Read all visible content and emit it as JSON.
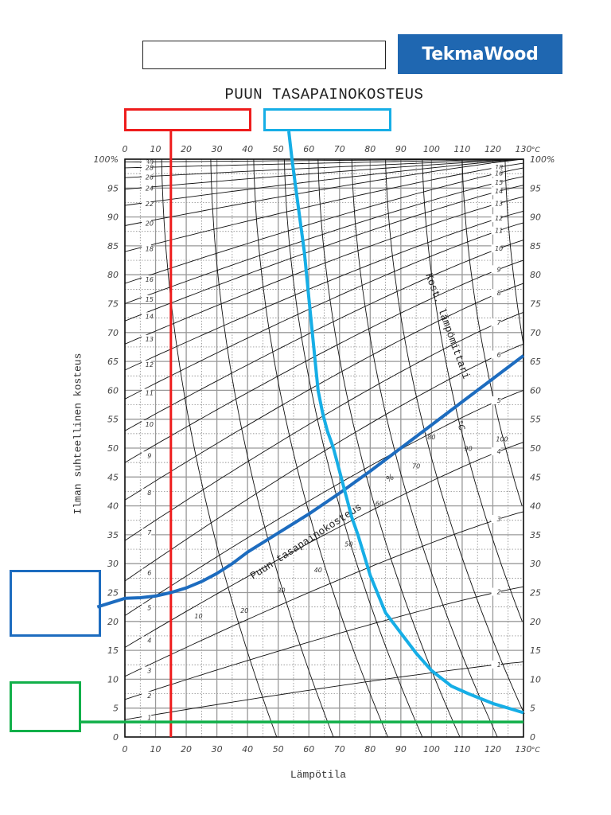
{
  "header": {
    "title_box_text": "",
    "logo_text": "TekmaWood",
    "logo_color": "#1f67b1"
  },
  "chart_title": "PUUN TASAPAINOKOSTEUS",
  "annotation_boxes": {
    "red": {
      "text": "",
      "color": "#ee1c1c"
    },
    "cyan": {
      "text": "",
      "color": "#16aee6"
    },
    "blue": {
      "text": "",
      "color": "#1d6cbf"
    },
    "green": {
      "text": "",
      "color": "#12b04a"
    }
  },
  "chart_data": {
    "type": "line",
    "title": "PUUN TASAPAINOKOSTEUS",
    "xlabel": "Lämpötila",
    "ylabel": "Ilman suhteellinen kosteus",
    "x_unit": "°C",
    "y_unit": "%",
    "xlim": [
      0,
      130
    ],
    "ylim": [
      0,
      100
    ],
    "x_ticks": [
      0,
      10,
      20,
      30,
      40,
      50,
      60,
      70,
      80,
      90,
      100,
      110,
      120,
      130
    ],
    "y_ticks": [
      0,
      5,
      10,
      15,
      20,
      25,
      30,
      35,
      40,
      45,
      50,
      55,
      60,
      65,
      70,
      75,
      80,
      85,
      90,
      95,
      100
    ],
    "grid": true,
    "emc_curve_labels_left": [
      "30",
      "28",
      "26",
      "24",
      "22",
      "20",
      "18",
      "16",
      "15",
      "14",
      "13",
      "12",
      "11",
      "10",
      "9",
      "8",
      "7",
      "6",
      "5",
      "4",
      "3",
      "2",
      "1"
    ],
    "emc_curve_labels_right": [
      "18",
      "16",
      "15",
      "14",
      "13",
      "12",
      "11",
      "10",
      "9",
      "8",
      "7",
      "6",
      "5",
      "4",
      "3",
      "2",
      "1"
    ],
    "wet_bulb_labels": [
      "10",
      "20",
      "30",
      "40",
      "50",
      "60",
      "70",
      "80",
      "90",
      "100"
    ],
    "annotations": [
      "Puun tasapainokosteus %",
      "Kost. lämpömittari °C"
    ],
    "emc_curves": [
      {
        "emc": 30,
        "left_rh": 99.5,
        "right_rh": 100
      },
      {
        "emc": 28,
        "left_rh": 98.5,
        "right_rh": 100
      },
      {
        "emc": 26,
        "left_rh": 96.8,
        "right_rh": 100
      },
      {
        "emc": 24,
        "left_rh": 94.8,
        "right_rh": 100
      },
      {
        "emc": 22,
        "left_rh": 92.0,
        "right_rh": 100
      },
      {
        "emc": 20,
        "left_rh": 88.5,
        "right_rh": 100
      },
      {
        "emc": 18,
        "left_rh": 84.0,
        "right_rh": 99.3
      },
      {
        "emc": 16,
        "left_rh": 78.5,
        "right_rh": 98.5
      },
      {
        "emc": 15,
        "left_rh": 75.0,
        "right_rh": 97.0
      },
      {
        "emc": 14,
        "left_rh": 72.0,
        "right_rh": 95.5
      },
      {
        "emc": 13,
        "left_rh": 68.0,
        "right_rh": 93.5
      },
      {
        "emc": 12,
        "left_rh": 63.5,
        "right_rh": 91.0
      },
      {
        "emc": 11,
        "left_rh": 58.5,
        "right_rh": 89.0
      },
      {
        "emc": 10,
        "left_rh": 53.0,
        "right_rh": 86.0
      },
      {
        "emc": 9,
        "left_rh": 47.5,
        "right_rh": 82.5
      },
      {
        "emc": 8,
        "left_rh": 41.0,
        "right_rh": 78.5
      },
      {
        "emc": 7,
        "left_rh": 34.0,
        "right_rh": 73.5
      },
      {
        "emc": 6,
        "left_rh": 27.0,
        "right_rh": 68.0
      },
      {
        "emc": 5,
        "left_rh": 21.0,
        "right_rh": 60.0
      },
      {
        "emc": 4,
        "left_rh": 15.5,
        "right_rh": 51.0
      },
      {
        "emc": 3,
        "left_rh": 10.5,
        "right_rh": 39.0
      },
      {
        "emc": 2,
        "left_rh": 6.5,
        "right_rh": 26.0
      },
      {
        "emc": 1,
        "left_rh": 3.0,
        "right_rh": 13.0
      }
    ],
    "series": [
      {
        "name": "Red reference line (temperature)",
        "color": "#ee1c1c",
        "x": [
          15,
          15
        ],
        "y": [
          100,
          0
        ]
      },
      {
        "name": "Green reference line (relative humidity)",
        "color": "#12b04a",
        "x": [
          0,
          130
        ],
        "y": [
          2.6,
          2.6
        ]
      },
      {
        "name": "Dark blue curve (EMC path)",
        "color": "#1d6cbf",
        "x": [
          -9,
          0,
          5,
          10,
          15,
          20,
          25,
          30,
          35,
          40,
          50,
          60,
          70,
          80,
          90,
          100,
          110,
          120,
          130
        ],
        "y": [
          22.5,
          24.0,
          24.1,
          24.4,
          25.0,
          25.8,
          26.9,
          28.3,
          30.0,
          32.0,
          35.3,
          38.6,
          42.2,
          46.0,
          50.0,
          54.0,
          58.0,
          62.0,
          66.0
        ]
      },
      {
        "name": "Cyan curve (wet-bulb path)",
        "color": "#16aee6",
        "x": [
          54.5,
          56.5,
          58.5,
          60.0,
          61.5,
          63.0,
          64.5,
          66.0,
          68.0,
          70.0,
          72.0,
          74.0,
          76.0,
          80.0,
          85.0,
          90.0,
          95.0,
          100.0,
          106.5,
          112.0,
          120.0,
          130.0
        ],
        "y": [
          100,
          92,
          84,
          76,
          68,
          60,
          56,
          53,
          50,
          46,
          42,
          38,
          35,
          28,
          21.5,
          18.0,
          14.5,
          11.5,
          8.8,
          7.5,
          5.8,
          4.2
        ]
      }
    ]
  }
}
